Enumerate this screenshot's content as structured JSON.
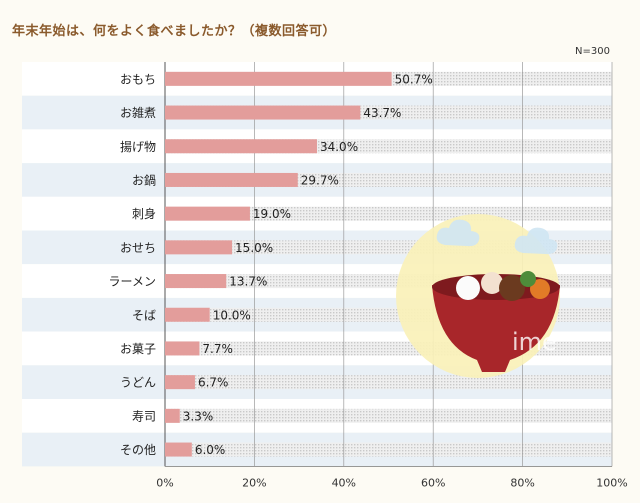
{
  "title": "年末年始は、何をよく食べましたか？（複数回答可）",
  "note": "N=300",
  "watermark": "ime",
  "colors": {
    "bar": "#e39d9b",
    "row_alt": "#e9f0f6",
    "row_plain": "#ffffff",
    "track": "#d7d7d7",
    "moon": "#faf1b8",
    "bowl": "#a8262a"
  },
  "chart_data": {
    "type": "bar",
    "orientation": "horizontal",
    "categories": [
      "おもち",
      "お雑煮",
      "揚げ物",
      "お鍋",
      "刺身",
      "おせち",
      "ラーメン",
      "そば",
      "お菓子",
      "うどん",
      "寿司",
      "その他"
    ],
    "values": [
      50.7,
      43.7,
      34.0,
      29.7,
      19.0,
      15.0,
      13.7,
      10.0,
      7.7,
      6.7,
      3.3,
      6.0
    ],
    "data_labels": [
      "50.7%",
      "43.7%",
      "34.0%",
      "29.7%",
      "19.0%",
      "15.0%",
      "13.7%",
      "10.0%",
      "7.7%",
      "6.7%",
      "3.3%",
      "6.0%"
    ],
    "xlim": [
      0,
      100
    ],
    "xticks": [
      0,
      20,
      40,
      60,
      80,
      100
    ],
    "xtick_labels": [
      "0%",
      "20%",
      "40%",
      "60%",
      "80%",
      "100%"
    ],
    "grid": true
  }
}
